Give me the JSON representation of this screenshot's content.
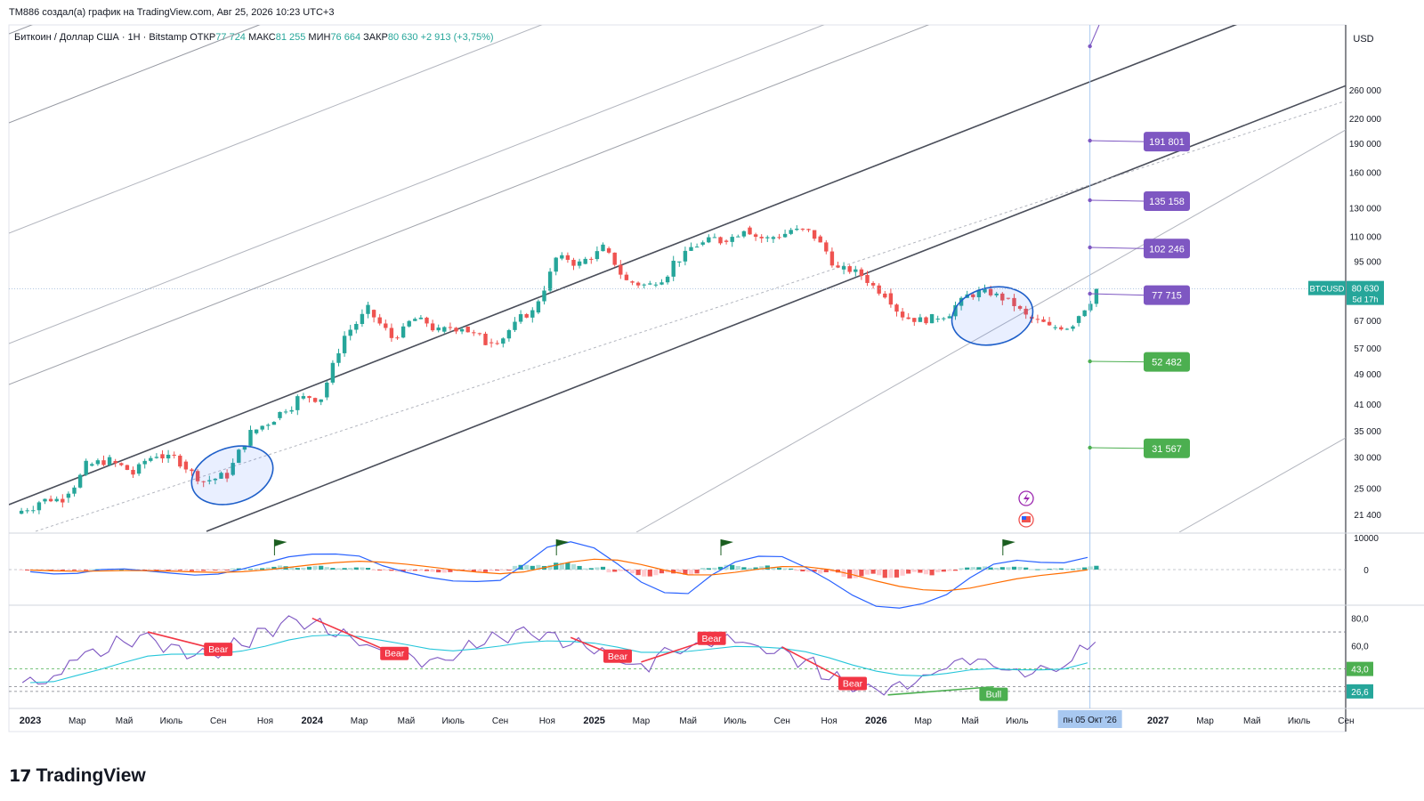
{
  "header": {
    "attribution": "TM886 создал(а) график на TradingView.com, Авг 25, 2026 10:23 UTC+3"
  },
  "brand": {
    "logo_mark": "17",
    "name": "TradingView"
  },
  "colors": {
    "up": "#26a69a",
    "down": "#ef5350",
    "accent": "#2962ff",
    "target_up": "#7e57c2",
    "target_down": "#4caf50",
    "cursor": "#a8c8f0"
  },
  "chart_data": [
    {
      "type": "line",
      "subtype": "candlestick",
      "symbol_line": {
        "title": "Биткоин / Доллар США · 1Н · Bitstamp",
        "o_label": "ОТКР",
        "o_val": "77 724",
        "h_label": "МАКС",
        "h_val": "81 255",
        "l_label": "МИН",
        "l_val": "76 664",
        "c_label": "ЗАКР",
        "c_val": "80 630",
        "change": "+2 913 (+3,75%)"
      },
      "price_axis": {
        "unit": "USD",
        "scale": "log",
        "ticks": [
          "260 000",
          "220 000",
          "190 000",
          "160 000",
          "130 000",
          "110 000",
          "95 000",
          "67 000",
          "57 000",
          "49 000",
          "41 000",
          "35 000",
          "30 000",
          "25 000",
          "21 400"
        ],
        "tick_values": [
          260000,
          220000,
          190000,
          160000,
          130000,
          110000,
          95000,
          67000,
          57000,
          49000,
          41000,
          35000,
          30000,
          25000,
          21400
        ]
      },
      "time_axis": {
        "ticks": [
          "2023",
          "Мар",
          "Май",
          "Июль",
          "Сен",
          "Ноя",
          "2024",
          "Мар",
          "Май",
          "Июль",
          "Сен",
          "Ноя",
          "2025",
          "Мар",
          "Май",
          "Июль",
          "Сен",
          "Ноя",
          "2026",
          "Мар",
          "Май",
          "Июль",
          "2027",
          "Мар",
          "Май",
          "Июль",
          "Сен"
        ],
        "tick_months": [
          0,
          2,
          4,
          6,
          8,
          10,
          12,
          14,
          16,
          18,
          20,
          22,
          24,
          26,
          28,
          30,
          32,
          34,
          36,
          38,
          40,
          42,
          48,
          50,
          52,
          54,
          56
        ],
        "bold": [
          "2023",
          "2024",
          "2025",
          "2026",
          "2027"
        ],
        "cursor_label": "пн 05 Окт '26",
        "cursor_month": 45.1
      },
      "price_series_monthly_close": [
        23100,
        23600,
        28500,
        29300,
        27200,
        30500,
        29200,
        26000,
        27000,
        34500,
        37700,
        42300,
        42600,
        61200,
        71300,
        60600,
        67500,
        62700,
        64600,
        58900,
        63300,
        70200,
        96400,
        93400,
        102400,
        84300,
        82500,
        94200,
        104600,
        107100,
        115700,
        108200,
        114100,
        109800,
        90400,
        87500,
        78600,
        68000,
        67500,
        73000,
        79000,
        76500,
        68500,
        64000,
        66000,
        80630
      ],
      "last_price": {
        "label": "BTCUSD",
        "value": "80 630",
        "countdown": "5d 17h",
        "price": 80630
      },
      "targets": [
        {
          "label": "191 801",
          "price": 191801,
          "kind": "up"
        },
        {
          "label": "135 158",
          "price": 135158,
          "kind": "up"
        },
        {
          "label": "102 246",
          "price": 102246,
          "kind": "up"
        },
        {
          "label": "77 715",
          "price": 77715,
          "kind": "up"
        },
        {
          "label": "52 482",
          "price": 52482,
          "kind": "down"
        },
        {
          "label": "31 567",
          "price": 31567,
          "kind": "down"
        }
      ],
      "indicator_icons": [
        "lightning-icon",
        "us-flag-icon"
      ]
    },
    {
      "type": "area",
      "name": "MACD",
      "axis_ticks": [
        "10000",
        "0"
      ],
      "ylim": [
        -10000,
        10000
      ],
      "histogram_monthly": [
        -300,
        -450,
        -200,
        300,
        100,
        -250,
        -400,
        -500,
        -200,
        400,
        900,
        1300,
        1200,
        1000,
        700,
        -500,
        -700,
        -900,
        -1000,
        -800,
        -600,
        1500,
        2800,
        2200,
        900,
        -900,
        -2200,
        -2300,
        -1600,
        1100,
        1500,
        1300,
        800,
        -700,
        -1700,
        -2800,
        -3200,
        -2600,
        -1800,
        -900,
        800,
        1400,
        900,
        300,
        400,
        1200
      ],
      "flags_month": [
        11,
        23,
        30,
        42
      ]
    },
    {
      "type": "line",
      "name": "RSI",
      "axis_ticks": [
        "80,0",
        "60,0"
      ],
      "badges": [
        {
          "text": "43,0",
          "value": 43
        },
        {
          "text": "26,6",
          "value": 26.6
        }
      ],
      "levels": [
        70,
        43,
        30,
        26.6
      ],
      "ylim": [
        20,
        85
      ],
      "rsi_monthly": [
        33,
        36,
        52,
        56,
        63,
        66,
        58,
        54,
        55,
        62,
        70,
        78,
        76,
        70,
        63,
        55,
        52,
        48,
        52,
        62,
        66,
        70,
        67,
        62,
        58,
        50,
        44,
        55,
        58,
        63,
        65,
        58,
        55,
        48,
        38,
        30,
        28,
        30,
        36,
        45,
        50,
        46,
        40,
        42,
        45,
        61
      ],
      "divergences": [
        {
          "text": "Bear",
          "kind": "bear",
          "m0": 5,
          "m1": 8
        },
        {
          "text": "Bear",
          "kind": "bear",
          "m0": 12,
          "m1": 15.5
        },
        {
          "text": "Bear",
          "kind": "bear",
          "m0": 23,
          "m1": 25
        },
        {
          "text": "Bear",
          "kind": "bear",
          "m0": 26,
          "m1": 29
        },
        {
          "text": "Bear",
          "kind": "bear",
          "m0": 32,
          "m1": 35
        },
        {
          "text": "Bull",
          "kind": "bull",
          "m0": 36.5,
          "m1": 41
        }
      ]
    }
  ]
}
